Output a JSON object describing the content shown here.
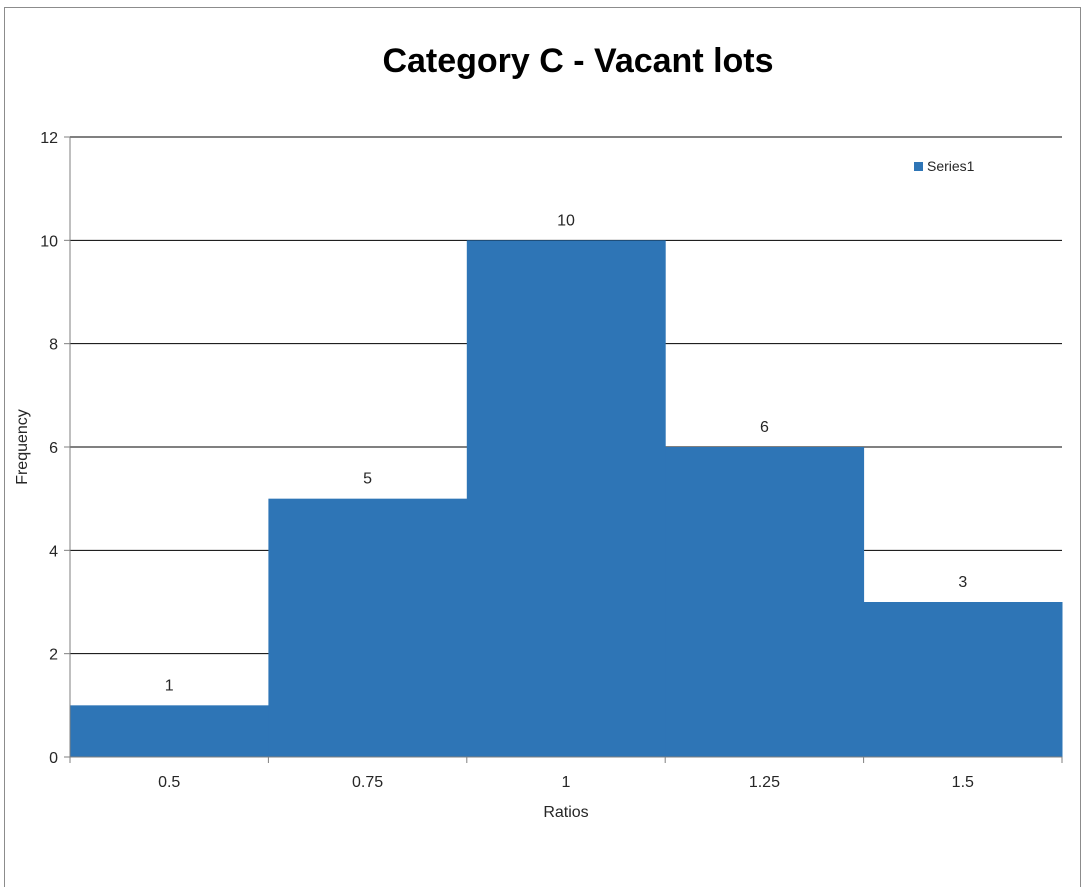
{
  "chart_data": {
    "type": "bar",
    "title": "Category C - Vacant lots",
    "xlabel": "Ratios",
    "ylabel": "Frequency",
    "categories": [
      "0.5",
      "0.75",
      "1",
      "1.25",
      "1.5"
    ],
    "series": [
      {
        "name": "Series1",
        "values": [
          1,
          5,
          10,
          6,
          3
        ],
        "color": "#2e75b6"
      }
    ],
    "ylim": [
      0,
      12
    ],
    "yticks": [
      0,
      2,
      4,
      6,
      8,
      10,
      12
    ],
    "grid": true,
    "legend_position": "top-right",
    "data_labels": true
  }
}
